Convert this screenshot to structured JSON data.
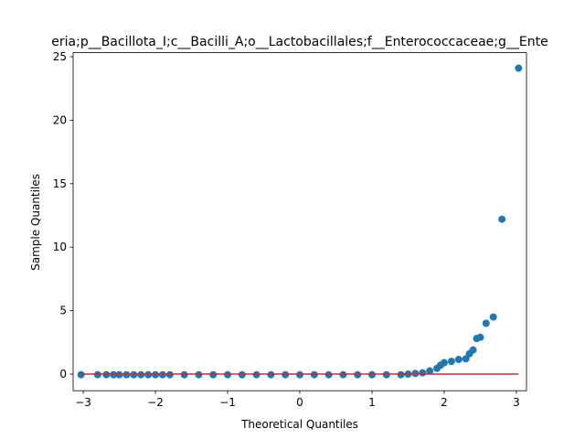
{
  "chart_data": {
    "type": "scatter",
    "title": "eria;p__Bacillota_I;c__Bacilli_A;o__Lactobacillales;f__Enterococcaceae;g__Ente",
    "x_label": "Theoretical Quantiles",
    "y_label": "Sample Quantiles",
    "points": {
      "color": "#1f77b4",
      "x": [
        -3.03,
        -2.8,
        -2.68,
        -2.58,
        -2.5,
        -2.4,
        -2.3,
        -2.2,
        -2.1,
        -2.0,
        -1.9,
        -1.8,
        -1.6,
        -1.4,
        -1.2,
        -1.0,
        -0.8,
        -0.6,
        -0.4,
        -0.2,
        0,
        0.2,
        0.4,
        0.6,
        0.8,
        1.0,
        1.2,
        1.4,
        1.5,
        1.6,
        1.7,
        1.8,
        1.9,
        1.95,
        2.0,
        2.1,
        2.2,
        2.3,
        2.35,
        2.4,
        2.45,
        2.5,
        2.58,
        2.68,
        2.8,
        3.03
      ],
      "y": [
        -0.05,
        -0.05,
        -0.05,
        -0.05,
        -0.05,
        -0.05,
        -0.05,
        -0.05,
        -0.05,
        -0.05,
        -0.05,
        -0.05,
        -0.05,
        -0.05,
        -0.05,
        -0.05,
        -0.05,
        -0.05,
        -0.05,
        -0.05,
        -0.05,
        -0.05,
        -0.05,
        -0.05,
        -0.05,
        -0.05,
        -0.05,
        -0.05,
        0.0,
        0.05,
        0.1,
        0.25,
        0.45,
        0.7,
        0.9,
        1.0,
        1.15,
        1.2,
        1.6,
        1.9,
        2.8,
        2.9,
        4.0,
        4.5,
        12.2,
        24.1
      ]
    },
    "line": {
      "color": "#d62728",
      "x": [
        -3.03,
        3.03
      ],
      "y": [
        0,
        0
      ]
    },
    "xlim": [
      -3.14,
      3.14
    ],
    "ylim": [
      -1.31,
      25.32
    ],
    "xticks": [
      {
        "value": -3,
        "label": "−3"
      },
      {
        "value": -2,
        "label": "−2"
      },
      {
        "value": -1,
        "label": "−1"
      },
      0,
      1,
      2,
      3
    ],
    "yticks": [
      0,
      5,
      10,
      15,
      20,
      25
    ]
  }
}
